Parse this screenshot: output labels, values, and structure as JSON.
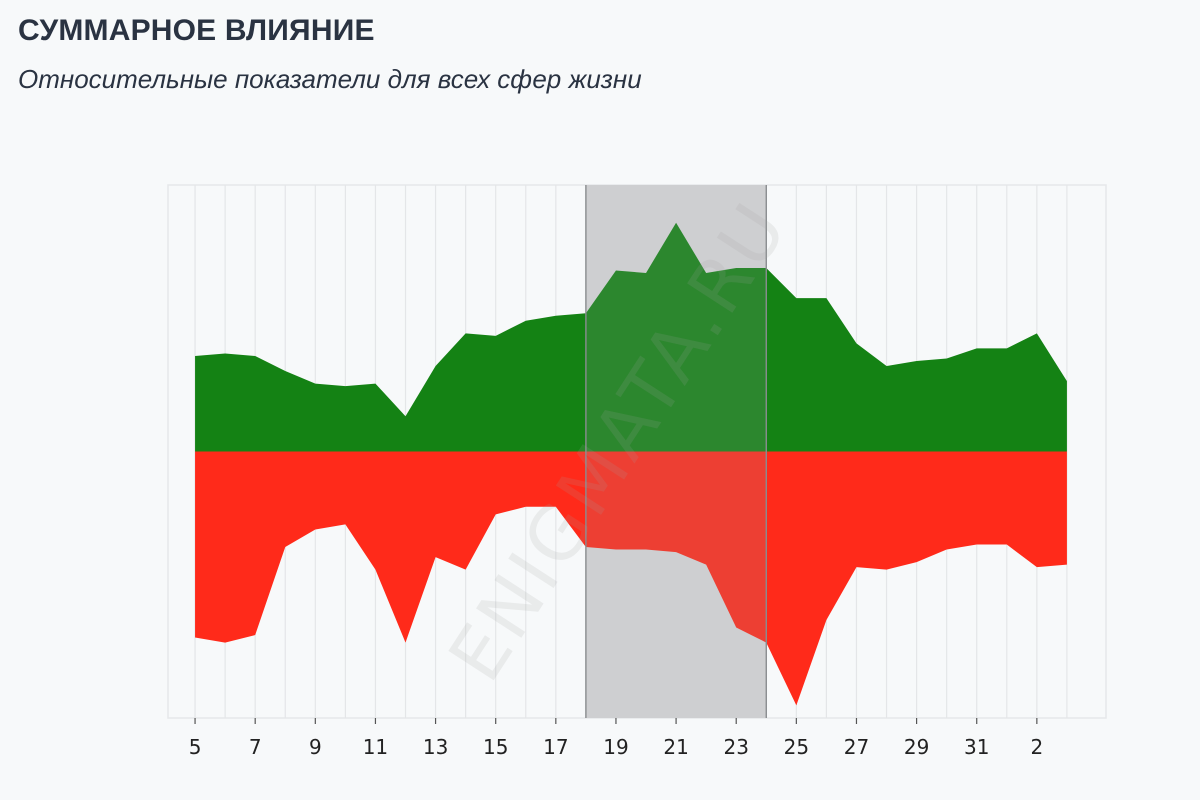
{
  "header": {
    "title": "СУММАРНОЕ ВЛИЯНИЕ",
    "subtitle": "Относительные показатели для всех сфер жизни"
  },
  "watermark": "ENIGMATA.RU",
  "chart_data": {
    "type": "area",
    "x_tick_labels": [
      "5",
      "7",
      "9",
      "11",
      "13",
      "15",
      "17",
      "19",
      "21",
      "23",
      "25",
      "27",
      "29",
      "31",
      "2"
    ],
    "x": [
      5,
      6,
      7,
      8,
      9,
      10,
      11,
      12,
      13,
      14,
      15,
      16,
      17,
      18,
      19,
      20,
      21,
      22,
      23,
      24,
      25,
      26,
      27,
      28,
      29,
      30,
      31,
      32,
      33,
      34
    ],
    "xlim": [
      4.1,
      35.3
    ],
    "ylim": [
      -1.06,
      1.06
    ],
    "grid": true,
    "series": [
      {
        "color": "#148214",
        "values": [
          0.38,
          0.39,
          0.38,
          0.32,
          0.27,
          0.26,
          0.27,
          0.14,
          0.34,
          0.47,
          0.46,
          0.52,
          0.54,
          0.55,
          0.72,
          0.71,
          0.91,
          0.71,
          0.73,
          0.73,
          0.61,
          0.61,
          0.43,
          0.34,
          0.36,
          0.37,
          0.41,
          0.41,
          0.47,
          0.28
        ]
      },
      {
        "color": "#ff2a1a",
        "values": [
          -0.74,
          -0.76,
          -0.73,
          -0.38,
          -0.31,
          -0.29,
          -0.47,
          -0.76,
          -0.42,
          -0.47,
          -0.25,
          -0.22,
          -0.22,
          -0.38,
          -0.39,
          -0.39,
          -0.4,
          -0.45,
          -0.7,
          -0.76,
          -1.01,
          -0.67,
          -0.46,
          -0.47,
          -0.44,
          -0.39,
          -0.37,
          -0.37,
          -0.46,
          -0.45
        ]
      }
    ],
    "highlight_range": [
      18,
      24
    ],
    "highlight_color": "#d9dadb"
  }
}
